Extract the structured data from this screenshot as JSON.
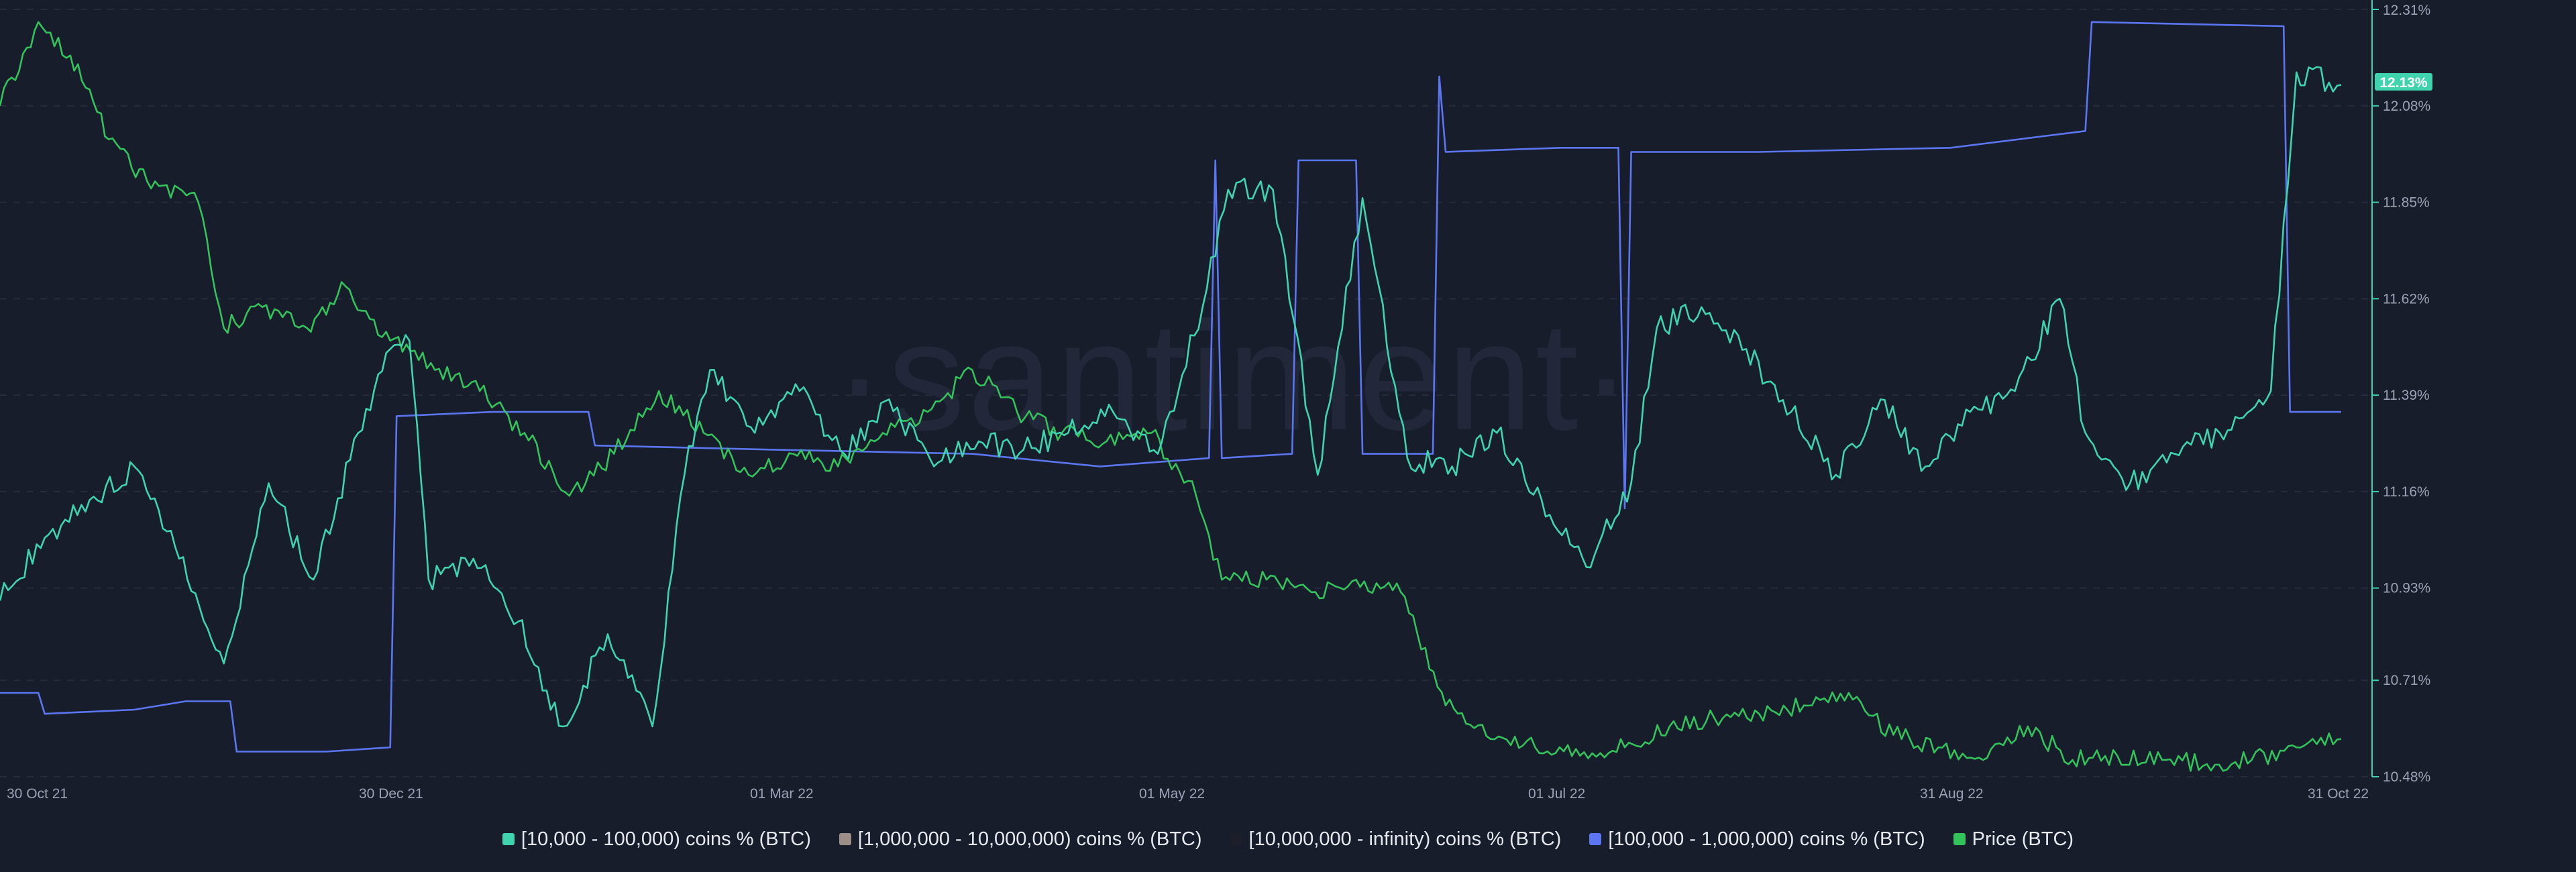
{
  "watermark": "·santiment·",
  "chart_data": {
    "type": "line",
    "x_ticks": [
      "30 Oct 21",
      "30 Dec 21",
      "01 Mar 22",
      "01 May 22",
      "01 Jul 22",
      "31 Aug 22",
      "31 Oct 22"
    ],
    "y_ticks": [
      "12.31%",
      "12.08%",
      "11.85%",
      "11.62%",
      "11.39%",
      "11.16%",
      "10.93%",
      "10.71%",
      "10.48%"
    ],
    "y_axis": "right",
    "ylim": [
      10.48,
      12.31
    ],
    "xlim": [
      "2021-10-30",
      "2022-10-31"
    ],
    "grid": "horizontal dashed",
    "legend_position": "bottom-center",
    "current_value_label": "12.13%",
    "series": [
      {
        "name": "[10,000 - 100,000) coins % (BTC)",
        "color": "#3fd4ad",
        "axis": "right",
        "points": [
          [
            "2021-10-30",
            10.9
          ],
          [
            "2021-11-06",
            11.05
          ],
          [
            "2021-11-13",
            11.14
          ],
          [
            "2021-11-20",
            11.22
          ],
          [
            "2021-11-27",
            11.0
          ],
          [
            "2021-12-04",
            10.75
          ],
          [
            "2021-12-11",
            11.18
          ],
          [
            "2021-12-18",
            10.95
          ],
          [
            "2021-12-25",
            11.3
          ],
          [
            "2021-12-30",
            11.5
          ],
          [
            "2022-01-02",
            11.52
          ],
          [
            "2022-01-05",
            10.95
          ],
          [
            "2022-01-12",
            11.0
          ],
          [
            "2022-01-19",
            10.85
          ],
          [
            "2022-01-26",
            10.6
          ],
          [
            "2022-02-02",
            10.82
          ],
          [
            "2022-02-09",
            10.6
          ],
          [
            "2022-02-14",
            11.2
          ],
          [
            "2022-02-18",
            11.45
          ],
          [
            "2022-02-25",
            11.3
          ],
          [
            "2022-03-04",
            11.4
          ],
          [
            "2022-03-11",
            11.25
          ],
          [
            "2022-03-18",
            11.38
          ],
          [
            "2022-03-25",
            11.22
          ],
          [
            "2022-04-01",
            11.28
          ],
          [
            "2022-04-08",
            11.26
          ],
          [
            "2022-04-15",
            11.3
          ],
          [
            "2022-04-22",
            11.35
          ],
          [
            "2022-04-29",
            11.25
          ],
          [
            "2022-05-06",
            11.6
          ],
          [
            "2022-05-10",
            11.88
          ],
          [
            "2022-05-17",
            11.88
          ],
          [
            "2022-05-24",
            11.2
          ],
          [
            "2022-05-31",
            11.86
          ],
          [
            "2022-06-07",
            11.24
          ],
          [
            "2022-06-14",
            11.22
          ],
          [
            "2022-06-21",
            11.3
          ],
          [
            "2022-06-28",
            11.14
          ],
          [
            "2022-07-05",
            10.98
          ],
          [
            "2022-07-12",
            11.18
          ],
          [
            "2022-07-16",
            11.55
          ],
          [
            "2022-07-23",
            11.6
          ],
          [
            "2022-07-30",
            11.5
          ],
          [
            "2022-08-06",
            11.35
          ],
          [
            "2022-08-13",
            11.2
          ],
          [
            "2022-08-20",
            11.38
          ],
          [
            "2022-08-27",
            11.22
          ],
          [
            "2022-09-03",
            11.35
          ],
          [
            "2022-09-10",
            11.4
          ],
          [
            "2022-09-17",
            11.62
          ],
          [
            "2022-09-21",
            11.3
          ],
          [
            "2022-09-28",
            11.18
          ],
          [
            "2022-10-05",
            11.25
          ],
          [
            "2022-10-12",
            11.3
          ],
          [
            "2022-10-20",
            11.4
          ],
          [
            "2022-10-24",
            12.16
          ],
          [
            "2022-10-31",
            12.13
          ]
        ]
      },
      {
        "name": "[1,000,000 - 10,000,000) coins % (BTC)",
        "color": "#9c8f88",
        "axis": "right",
        "points": []
      },
      {
        "name": "[10,000,000 - infinity) coins % (BTC)",
        "color": "#1c1f2a",
        "axis": "right",
        "points": []
      },
      {
        "name": "[100,000  - 1,000,000) coins % (BTC)",
        "color": "#5b76f0",
        "axis": "hidden",
        "points": [
          [
            "2021-10-30",
            10.68
          ],
          [
            "2021-11-05",
            10.68
          ],
          [
            "2021-11-06",
            10.63
          ],
          [
            "2021-11-20",
            10.64
          ],
          [
            "2021-11-28",
            10.66
          ],
          [
            "2021-12-05",
            10.66
          ],
          [
            "2021-12-06",
            10.54
          ],
          [
            "2021-12-20",
            10.54
          ],
          [
            "2021-12-30",
            10.55
          ],
          [
            "2021-12-31",
            11.34
          ],
          [
            "2022-01-15",
            11.35
          ],
          [
            "2022-01-30",
            11.35
          ],
          [
            "2022-01-31",
            11.27
          ],
          [
            "2022-02-28",
            11.26
          ],
          [
            "2022-03-31",
            11.25
          ],
          [
            "2022-04-20",
            11.22
          ],
          [
            "2022-05-07",
            11.24
          ],
          [
            "2022-05-08",
            11.95
          ],
          [
            "2022-05-09",
            11.24
          ],
          [
            "2022-05-20",
            11.25
          ],
          [
            "2022-05-21",
            11.95
          ],
          [
            "2022-05-30",
            11.95
          ],
          [
            "2022-05-31",
            11.25
          ],
          [
            "2022-06-11",
            11.25
          ],
          [
            "2022-06-12",
            12.15
          ],
          [
            "2022-06-13",
            11.97
          ],
          [
            "2022-07-01",
            11.98
          ],
          [
            "2022-07-10",
            11.98
          ],
          [
            "2022-07-11",
            11.12
          ],
          [
            "2022-07-12",
            11.97
          ],
          [
            "2022-08-01",
            11.97
          ],
          [
            "2022-08-31",
            11.98
          ],
          [
            "2022-09-21",
            12.02
          ],
          [
            "2022-09-22",
            12.28
          ],
          [
            "2022-10-22",
            12.27
          ],
          [
            "2022-10-23",
            11.35
          ],
          [
            "2022-10-31",
            11.35
          ]
        ]
      },
      {
        "name": "Price (BTC)",
        "color": "#34c25a",
        "axis": "hidden",
        "points": [
          [
            "2021-10-30",
            12.08
          ],
          [
            "2021-11-05",
            12.28
          ],
          [
            "2021-11-10",
            12.2
          ],
          [
            "2021-11-16",
            12.0
          ],
          [
            "2021-11-22",
            11.9
          ],
          [
            "2021-11-30",
            11.85
          ],
          [
            "2021-12-04",
            11.55
          ],
          [
            "2021-12-10",
            11.6
          ],
          [
            "2021-12-17",
            11.55
          ],
          [
            "2021-12-23",
            11.65
          ],
          [
            "2021-12-30",
            11.52
          ],
          [
            "2022-01-06",
            11.45
          ],
          [
            "2022-01-13",
            11.4
          ],
          [
            "2022-01-20",
            11.3
          ],
          [
            "2022-01-27",
            11.15
          ],
          [
            "2022-02-03",
            11.25
          ],
          [
            "2022-02-10",
            11.4
          ],
          [
            "2022-02-17",
            11.3
          ],
          [
            "2022-02-24",
            11.2
          ],
          [
            "2022-03-03",
            11.25
          ],
          [
            "2022-03-10",
            11.22
          ],
          [
            "2022-03-17",
            11.3
          ],
          [
            "2022-03-24",
            11.35
          ],
          [
            "2022-03-31",
            11.45
          ],
          [
            "2022-04-07",
            11.35
          ],
          [
            "2022-04-14",
            11.3
          ],
          [
            "2022-04-21",
            11.28
          ],
          [
            "2022-04-28",
            11.3
          ],
          [
            "2022-05-05",
            11.15
          ],
          [
            "2022-05-09",
            10.95
          ],
          [
            "2022-05-16",
            10.95
          ],
          [
            "2022-05-23",
            10.92
          ],
          [
            "2022-05-30",
            10.95
          ],
          [
            "2022-06-06",
            10.92
          ],
          [
            "2022-06-13",
            10.65
          ],
          [
            "2022-06-20",
            10.57
          ],
          [
            "2022-06-27",
            10.55
          ],
          [
            "2022-07-04",
            10.53
          ],
          [
            "2022-07-11",
            10.55
          ],
          [
            "2022-07-18",
            10.6
          ],
          [
            "2022-07-25",
            10.62
          ],
          [
            "2022-08-01",
            10.63
          ],
          [
            "2022-08-08",
            10.65
          ],
          [
            "2022-08-15",
            10.68
          ],
          [
            "2022-08-22",
            10.58
          ],
          [
            "2022-08-29",
            10.55
          ],
          [
            "2022-09-05",
            10.52
          ],
          [
            "2022-09-12",
            10.6
          ],
          [
            "2022-09-19",
            10.52
          ],
          [
            "2022-09-26",
            10.53
          ],
          [
            "2022-10-03",
            10.52
          ],
          [
            "2022-10-10",
            10.51
          ],
          [
            "2022-10-17",
            10.52
          ],
          [
            "2022-10-24",
            10.55
          ],
          [
            "2022-10-31",
            10.57
          ]
        ]
      }
    ]
  }
}
